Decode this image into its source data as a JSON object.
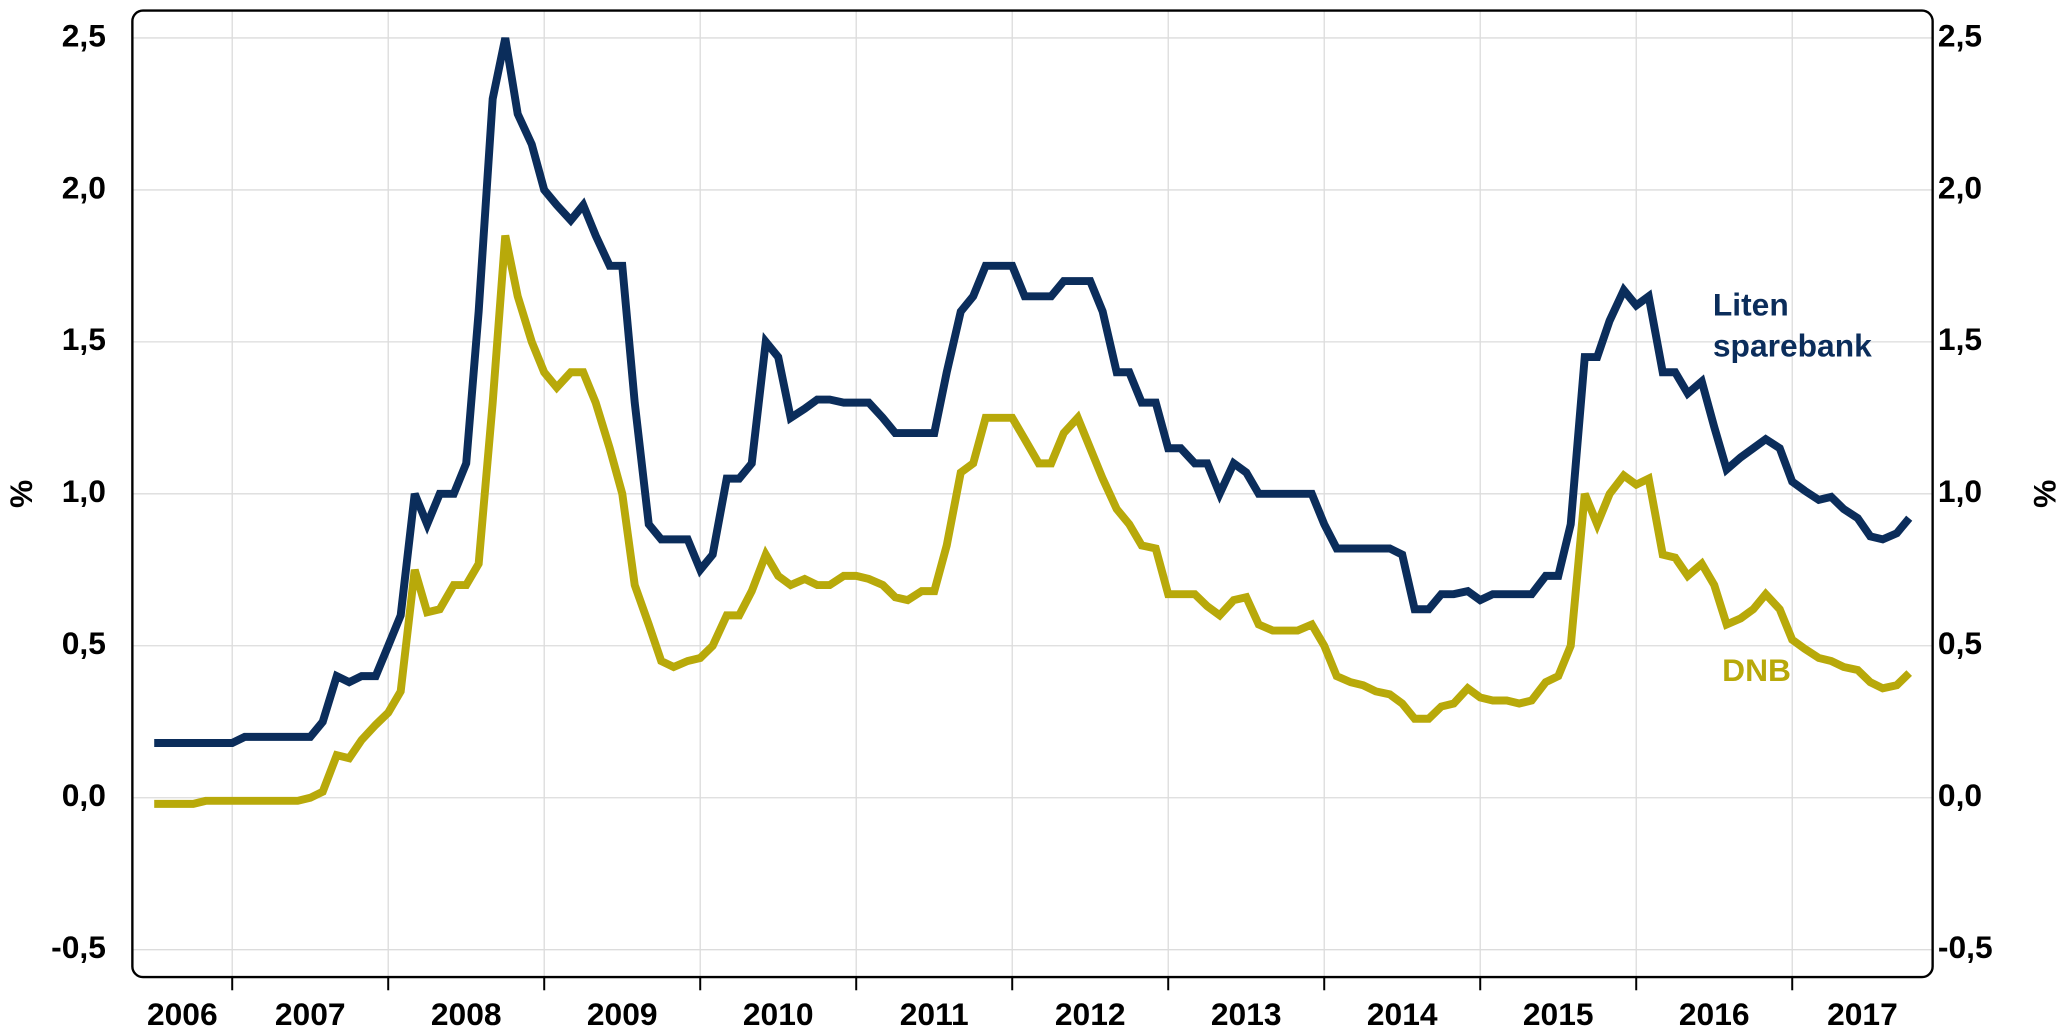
{
  "chart_data": {
    "type": "line",
    "ylabel": "%",
    "y2label": "%",
    "x": [
      2006.5,
      2006.58,
      2006.67,
      2006.75,
      2006.83,
      2006.92,
      2007.0,
      2007.08,
      2007.17,
      2007.25,
      2007.33,
      2007.42,
      2007.5,
      2007.58,
      2007.67,
      2007.75,
      2007.83,
      2007.92,
      2008.0,
      2008.08,
      2008.17,
      2008.25,
      2008.33,
      2008.42,
      2008.5,
      2008.58,
      2008.67,
      2008.75,
      2008.83,
      2008.92,
      2009.0,
      2009.08,
      2009.17,
      2009.25,
      2009.33,
      2009.42,
      2009.5,
      2009.58,
      2009.67,
      2009.75,
      2009.83,
      2009.92,
      2010.0,
      2010.08,
      2010.17,
      2010.25,
      2010.33,
      2010.42,
      2010.5,
      2010.58,
      2010.67,
      2010.75,
      2010.83,
      2010.92,
      2011.0,
      2011.08,
      2011.17,
      2011.25,
      2011.33,
      2011.42,
      2011.5,
      2011.58,
      2011.67,
      2011.75,
      2011.83,
      2011.92,
      2012.0,
      2012.08,
      2012.17,
      2012.25,
      2012.33,
      2012.42,
      2012.5,
      2012.58,
      2012.67,
      2012.75,
      2012.83,
      2012.92,
      2013.0,
      2013.08,
      2013.17,
      2013.25,
      2013.33,
      2013.42,
      2013.5,
      2013.58,
      2013.67,
      2013.75,
      2013.83,
      2013.92,
      2014.0,
      2014.08,
      2014.17,
      2014.25,
      2014.33,
      2014.42,
      2014.5,
      2014.58,
      2014.67,
      2014.75,
      2014.83,
      2014.92,
      2015.0,
      2015.08,
      2015.17,
      2015.25,
      2015.33,
      2015.42,
      2015.5,
      2015.58,
      2015.67,
      2015.75,
      2015.83,
      2015.92,
      2016.0,
      2016.08,
      2016.17,
      2016.25,
      2016.33,
      2016.42,
      2016.5,
      2016.58,
      2016.67,
      2016.75,
      2016.83,
      2016.92,
      2017.0,
      2017.08,
      2017.17,
      2017.25,
      2017.33,
      2017.42,
      2017.5,
      2017.58,
      2017.67,
      2017.75
    ],
    "series": [
      {
        "label_lines": [
          "Liten",
          "sparebank"
        ],
        "color": "#0b2d5b",
        "values": [
          0.18,
          0.18,
          0.18,
          0.18,
          0.18,
          0.18,
          0.18,
          0.2,
          0.2,
          0.2,
          0.2,
          0.2,
          0.2,
          0.25,
          0.4,
          0.38,
          0.4,
          0.4,
          0.5,
          0.6,
          1.0,
          0.9,
          1.0,
          1.0,
          1.1,
          1.6,
          2.3,
          2.5,
          2.25,
          2.15,
          2.0,
          1.95,
          1.9,
          1.95,
          1.85,
          1.75,
          1.75,
          1.3,
          0.9,
          0.85,
          0.85,
          0.85,
          0.75,
          0.8,
          1.05,
          1.05,
          1.1,
          1.5,
          1.45,
          1.25,
          1.28,
          1.31,
          1.31,
          1.3,
          1.3,
          1.3,
          1.25,
          1.2,
          1.2,
          1.2,
          1.2,
          1.4,
          1.6,
          1.65,
          1.75,
          1.75,
          1.75,
          1.65,
          1.65,
          1.65,
          1.7,
          1.7,
          1.7,
          1.6,
          1.4,
          1.4,
          1.3,
          1.3,
          1.15,
          1.15,
          1.1,
          1.1,
          1.0,
          1.1,
          1.07,
          1.0,
          1.0,
          1.0,
          1.0,
          1.0,
          0.9,
          0.82,
          0.82,
          0.82,
          0.82,
          0.82,
          0.8,
          0.62,
          0.62,
          0.67,
          0.67,
          0.68,
          0.65,
          0.67,
          0.67,
          0.67,
          0.67,
          0.73,
          0.73,
          0.9,
          1.45,
          1.45,
          1.57,
          1.67,
          1.62,
          1.65,
          1.4,
          1.4,
          1.33,
          1.37,
          1.22,
          1.08,
          1.12,
          1.15,
          1.18,
          1.15,
          1.04,
          1.01,
          0.98,
          0.99,
          0.95,
          0.92,
          0.86,
          0.85,
          0.87,
          0.92
        ]
      },
      {
        "label_lines": [
          "DNB"
        ],
        "color": "#b8a90a",
        "values": [
          -0.02,
          -0.02,
          -0.02,
          -0.02,
          -0.01,
          -0.01,
          -0.01,
          -0.01,
          -0.01,
          -0.01,
          -0.01,
          -0.01,
          0,
          0.02,
          0.14,
          0.13,
          0.19,
          0.24,
          0.28,
          0.35,
          0.75,
          0.61,
          0.62,
          0.7,
          0.7,
          0.77,
          1.3,
          1.85,
          1.65,
          1.5,
          1.4,
          1.35,
          1.4,
          1.4,
          1.3,
          1.15,
          1.0,
          0.7,
          0.57,
          0.45,
          0.43,
          0.45,
          0.46,
          0.5,
          0.6,
          0.6,
          0.68,
          0.8,
          0.73,
          0.7,
          0.72,
          0.7,
          0.7,
          0.73,
          0.73,
          0.72,
          0.7,
          0.66,
          0.65,
          0.68,
          0.68,
          0.83,
          1.07,
          1.1,
          1.25,
          1.25,
          1.25,
          1.18,
          1.1,
          1.1,
          1.2,
          1.25,
          1.15,
          1.05,
          0.95,
          0.9,
          0.83,
          0.82,
          0.67,
          0.67,
          0.67,
          0.63,
          0.6,
          0.65,
          0.66,
          0.57,
          0.55,
          0.55,
          0.55,
          0.57,
          0.5,
          0.4,
          0.38,
          0.37,
          0.35,
          0.34,
          0.31,
          0.26,
          0.26,
          0.3,
          0.31,
          0.36,
          0.33,
          0.32,
          0.32,
          0.31,
          0.32,
          0.38,
          0.4,
          0.5,
          1.0,
          0.9,
          1.0,
          1.06,
          1.03,
          1.05,
          0.8,
          0.79,
          0.73,
          0.77,
          0.7,
          0.57,
          0.59,
          0.62,
          0.67,
          0.62,
          0.52,
          0.49,
          0.46,
          0.45,
          0.43,
          0.42,
          0.38,
          0.36,
          0.37,
          0.41
        ]
      }
    ],
    "xlim": [
      2006.36,
      2017.9
    ],
    "xticks": [
      2007,
      2008,
      2009,
      2010,
      2011,
      2012,
      2013,
      2014,
      2015,
      2016,
      2017
    ],
    "x_labels": [
      "2006",
      "2007",
      "2008",
      "2009",
      "2010",
      "2011",
      "2012",
      "2013",
      "2014",
      "2015",
      "2016",
      "2017"
    ],
    "ylim": [
      -0.59,
      2.59
    ],
    "yticks": [
      {
        "value": -0.5,
        "label": "-0,5"
      },
      {
        "value": 0,
        "label": "0,0"
      },
      {
        "value": 0.5,
        "label": "0,5"
      },
      {
        "value": 1,
        "label": "1,0"
      },
      {
        "value": 1.5,
        "label": "1,5"
      },
      {
        "value": 2,
        "label": "2,0"
      },
      {
        "value": 2.5,
        "label": "2,5"
      }
    ],
    "y2lim": [
      -0.59,
      2.59
    ],
    "y2ticks": [
      {
        "value": -0.5,
        "label": "-0,5"
      },
      {
        "value": 0,
        "label": "0,0"
      },
      {
        "value": 0.5,
        "label": "0,5"
      },
      {
        "value": 1,
        "label": "1,0"
      },
      {
        "value": 1.5,
        "label": "1,5"
      },
      {
        "value": 2,
        "label": "2,0"
      },
      {
        "value": 2.5,
        "label": "2,5"
      }
    ],
    "grid": true
  }
}
